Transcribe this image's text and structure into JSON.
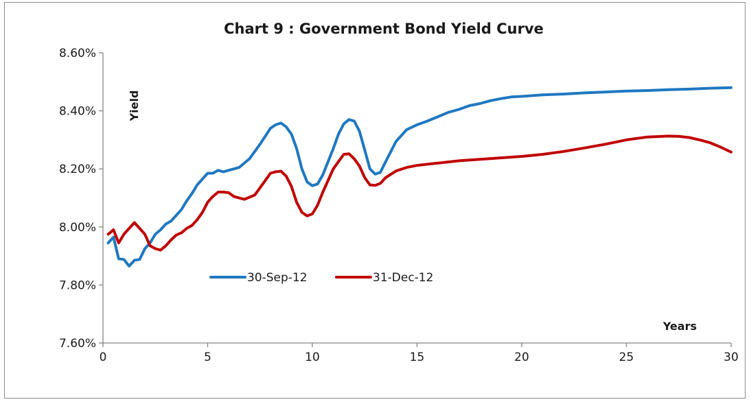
{
  "chart_data": {
    "type": "line",
    "title": "Chart 9 : Government Bond Yield Curve",
    "xlabel": "Years",
    "ylabel": "Yield",
    "xlim": [
      0,
      30
    ],
    "ylim": [
      7.6,
      8.6
    ],
    "x_ticks": [
      {
        "value": 0,
        "label": "0"
      },
      {
        "value": 5,
        "label": "5"
      },
      {
        "value": 10,
        "label": "10"
      },
      {
        "value": 15,
        "label": "15"
      },
      {
        "value": 20,
        "label": "20"
      },
      {
        "value": 25,
        "label": "25"
      },
      {
        "value": 30,
        "label": "30"
      }
    ],
    "y_ticks": [
      {
        "value": 7.6,
        "label": "7.60%"
      },
      {
        "value": 7.8,
        "label": "7.80%"
      },
      {
        "value": 8.0,
        "label": "8.00%"
      },
      {
        "value": 8.2,
        "label": "8.20%"
      },
      {
        "value": 8.4,
        "label": "8.40%"
      },
      {
        "value": 8.6,
        "label": "8.60%"
      }
    ],
    "grid": false,
    "legend_position": "center-left",
    "series": [
      {
        "name": "30-Sep-12",
        "color": "#1f78c1",
        "points": [
          [
            0.25,
            7.945
          ],
          [
            0.5,
            7.965
          ],
          [
            0.75,
            7.89
          ],
          [
            1.0,
            7.888
          ],
          [
            1.25,
            7.865
          ],
          [
            1.5,
            7.885
          ],
          [
            1.75,
            7.888
          ],
          [
            2.0,
            7.925
          ],
          [
            2.25,
            7.945
          ],
          [
            2.5,
            7.975
          ],
          [
            2.75,
            7.99
          ],
          [
            3.0,
            8.01
          ],
          [
            3.25,
            8.02
          ],
          [
            3.5,
            8.04
          ],
          [
            3.75,
            8.06
          ],
          [
            4.0,
            8.09
          ],
          [
            4.25,
            8.115
          ],
          [
            4.5,
            8.145
          ],
          [
            4.75,
            8.165
          ],
          [
            5.0,
            8.185
          ],
          [
            5.25,
            8.185
          ],
          [
            5.5,
            8.195
          ],
          [
            5.75,
            8.19
          ],
          [
            6.0,
            8.195
          ],
          [
            6.5,
            8.205
          ],
          [
            7.0,
            8.235
          ],
          [
            7.5,
            8.285
          ],
          [
            8.0,
            8.34
          ],
          [
            8.25,
            8.352
          ],
          [
            8.5,
            8.358
          ],
          [
            8.75,
            8.345
          ],
          [
            9.0,
            8.32
          ],
          [
            9.25,
            8.27
          ],
          [
            9.5,
            8.2
          ],
          [
            9.75,
            8.155
          ],
          [
            10.0,
            8.142
          ],
          [
            10.25,
            8.148
          ],
          [
            10.5,
            8.18
          ],
          [
            11.0,
            8.27
          ],
          [
            11.25,
            8.32
          ],
          [
            11.5,
            8.355
          ],
          [
            11.75,
            8.37
          ],
          [
            12.0,
            8.365
          ],
          [
            12.25,
            8.33
          ],
          [
            12.5,
            8.265
          ],
          [
            12.75,
            8.2
          ],
          [
            13.0,
            8.182
          ],
          [
            13.25,
            8.188
          ],
          [
            13.5,
            8.225
          ],
          [
            14.0,
            8.295
          ],
          [
            14.5,
            8.335
          ],
          [
            15.0,
            8.352
          ],
          [
            15.5,
            8.365
          ],
          [
            16.0,
            8.38
          ],
          [
            16.5,
            8.395
          ],
          [
            17.0,
            8.405
          ],
          [
            17.5,
            8.418
          ],
          [
            18.0,
            8.425
          ],
          [
            18.5,
            8.435
          ],
          [
            19.0,
            8.442
          ],
          [
            19.5,
            8.448
          ],
          [
            20.0,
            8.45
          ],
          [
            21.0,
            8.455
          ],
          [
            22.0,
            8.458
          ],
          [
            23.0,
            8.462
          ],
          [
            24.0,
            8.465
          ],
          [
            25.0,
            8.468
          ],
          [
            26.0,
            8.47
          ],
          [
            27.0,
            8.473
          ],
          [
            28.0,
            8.475
          ],
          [
            29.0,
            8.478
          ],
          [
            30.0,
            8.48
          ]
        ]
      },
      {
        "name": "31-Dec-12",
        "color": "#c00000",
        "points": [
          [
            0.25,
            7.975
          ],
          [
            0.5,
            7.99
          ],
          [
            0.75,
            7.945
          ],
          [
            1.0,
            7.975
          ],
          [
            1.25,
            7.995
          ],
          [
            1.5,
            8.015
          ],
          [
            1.75,
            7.995
          ],
          [
            2.0,
            7.975
          ],
          [
            2.25,
            7.935
          ],
          [
            2.5,
            7.925
          ],
          [
            2.75,
            7.92
          ],
          [
            3.0,
            7.935
          ],
          [
            3.25,
            7.955
          ],
          [
            3.5,
            7.972
          ],
          [
            3.75,
            7.98
          ],
          [
            4.0,
            7.995
          ],
          [
            4.25,
            8.005
          ],
          [
            4.5,
            8.025
          ],
          [
            4.75,
            8.05
          ],
          [
            5.0,
            8.085
          ],
          [
            5.25,
            8.105
          ],
          [
            5.5,
            8.12
          ],
          [
            5.75,
            8.12
          ],
          [
            6.0,
            8.118
          ],
          [
            6.25,
            8.105
          ],
          [
            6.75,
            8.095
          ],
          [
            7.25,
            8.11
          ],
          [
            7.5,
            8.135
          ],
          [
            8.0,
            8.185
          ],
          [
            8.25,
            8.19
          ],
          [
            8.5,
            8.192
          ],
          [
            8.75,
            8.175
          ],
          [
            9.0,
            8.14
          ],
          [
            9.25,
            8.085
          ],
          [
            9.5,
            8.05
          ],
          [
            9.75,
            8.038
          ],
          [
            10.0,
            8.045
          ],
          [
            10.25,
            8.075
          ],
          [
            10.5,
            8.12
          ],
          [
            11.0,
            8.2
          ],
          [
            11.25,
            8.225
          ],
          [
            11.5,
            8.25
          ],
          [
            11.75,
            8.252
          ],
          [
            12.0,
            8.235
          ],
          [
            12.25,
            8.21
          ],
          [
            12.5,
            8.17
          ],
          [
            12.75,
            8.145
          ],
          [
            13.0,
            8.143
          ],
          [
            13.25,
            8.15
          ],
          [
            13.5,
            8.17
          ],
          [
            14.0,
            8.193
          ],
          [
            14.5,
            8.205
          ],
          [
            15.0,
            8.212
          ],
          [
            16.0,
            8.22
          ],
          [
            17.0,
            8.228
          ],
          [
            18.0,
            8.233
          ],
          [
            19.0,
            8.238
          ],
          [
            20.0,
            8.243
          ],
          [
            21.0,
            8.25
          ],
          [
            22.0,
            8.26
          ],
          [
            23.0,
            8.272
          ],
          [
            24.0,
            8.285
          ],
          [
            25.0,
            8.3
          ],
          [
            26.0,
            8.31
          ],
          [
            27.0,
            8.313
          ],
          [
            27.5,
            8.312
          ],
          [
            28.0,
            8.308
          ],
          [
            28.5,
            8.3
          ],
          [
            29.0,
            8.29
          ],
          [
            29.5,
            8.275
          ],
          [
            30.0,
            8.258
          ]
        ]
      }
    ]
  }
}
